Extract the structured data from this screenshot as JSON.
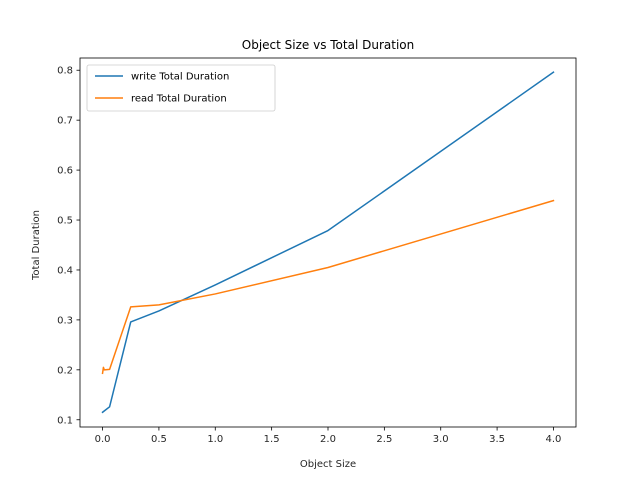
{
  "chart_data": {
    "type": "line",
    "title": "Object Size vs Total Duration",
    "xlabel": "Object Size",
    "ylabel": "Total Duration",
    "xlim": [
      -0.2,
      4.2
    ],
    "ylim": [
      0.0855,
      0.8245
    ],
    "xticks": [
      0.0,
      0.5,
      1.0,
      1.5,
      2.0,
      2.5,
      3.0,
      3.5,
      4.0
    ],
    "xtick_labels": [
      "0.0",
      "0.5",
      "1.0",
      "1.5",
      "2.0",
      "2.5",
      "3.0",
      "3.5",
      "4.0"
    ],
    "yticks": [
      0.1,
      0.2,
      0.3,
      0.4,
      0.5,
      0.6,
      0.7,
      0.8
    ],
    "ytick_labels": [
      "0.1",
      "0.2",
      "0.3",
      "0.4",
      "0.5",
      "0.6",
      "0.7",
      "0.8"
    ],
    "grid": false,
    "legend_position": "top-left",
    "series": [
      {
        "name": "write Total Duration",
        "color": "#1f77b4",
        "x": [
          0.0,
          0.0625,
          0.25,
          0.5,
          1.0,
          2.0,
          4.0
        ],
        "y": [
          0.115,
          0.126,
          0.296,
          0.318,
          0.37,
          0.479,
          0.796
        ]
      },
      {
        "name": "read Total Duration",
        "color": "#ff7f0e",
        "x": [
          0.0,
          0.0078,
          0.0156,
          0.0625,
          0.25,
          0.5,
          1.0,
          2.0,
          4.0
        ],
        "y": [
          0.193,
          0.205,
          0.2,
          0.201,
          0.326,
          0.33,
          0.352,
          0.405,
          0.539
        ]
      }
    ]
  }
}
